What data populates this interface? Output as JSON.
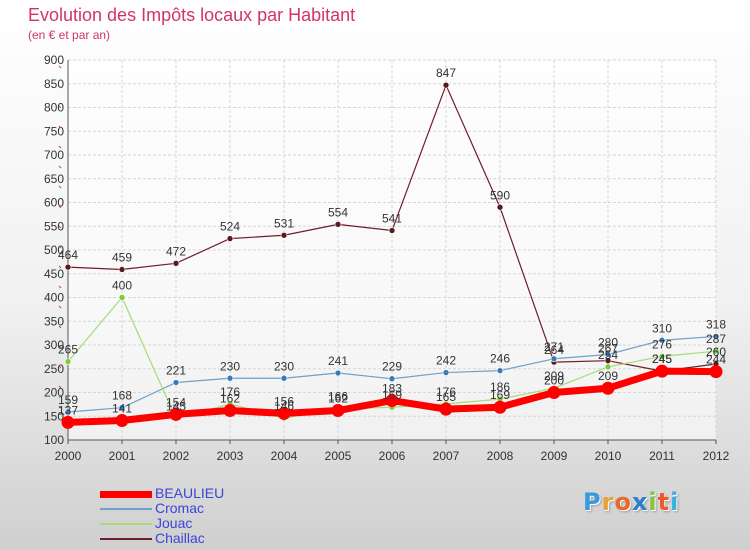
{
  "title": "Evolution des Impôts locaux par Habitant",
  "subtitle": "(en € et par an)",
  "logo": {
    "text": "Proxiti",
    "letters": [
      "P",
      "r",
      "o",
      "x",
      "i",
      "t",
      "i"
    ],
    "colors": [
      "#3a9ad9",
      "#e8a13a",
      "#e86a2a",
      "#2a7fc9",
      "#8ac23a",
      "#e85a2a",
      "#3ab0e0"
    ]
  },
  "chart_data": {
    "type": "line",
    "title": "Evolution des Impôts locaux par Habitant",
    "subtitle": "(en € et par an)",
    "x": [
      "2000",
      "2001",
      "2002",
      "2003",
      "2004",
      "2005",
      "2006",
      "2007",
      "2008",
      "2009",
      "2010",
      "2011",
      "2012"
    ],
    "yticks": [
      "100",
      "150",
      "200",
      "250",
      "300",
      "350",
      "400",
      "450",
      "500",
      "550",
      "600",
      "650",
      "700",
      "750",
      "800",
      "850",
      "900"
    ],
    "ylim": [
      100,
      900
    ],
    "grid": true,
    "legend_position": "bottom-left",
    "series": [
      {
        "name": "Chaillac",
        "color": "#6e1e28",
        "marker": "#5a1820",
        "width": 1.2,
        "values": [
          464,
          459,
          472,
          524,
          531,
          554,
          541,
          847,
          590,
          264,
          267,
          245,
          260
        ],
        "labels": [
          "464",
          "459",
          "472",
          "524",
          "531",
          "554",
          "541",
          "847",
          "590",
          "264",
          "267",
          "245",
          "260"
        ]
      },
      {
        "name": "Cromac",
        "color": "#6ea0c8",
        "marker": "#3a7ab8",
        "width": 1.2,
        "values": [
          159,
          168,
          221,
          230,
          230,
          241,
          229,
          242,
          246,
          271,
          280,
          310,
          318
        ],
        "labels": [
          "159",
          "168",
          "221",
          "230",
          "230",
          "241",
          "229",
          "242",
          "246",
          "271",
          "280",
          "310",
          "318"
        ]
      },
      {
        "name": "Jouac",
        "color": "#a4dc7a",
        "marker": "#7acc3a",
        "width": 1.2,
        "values": [
          265,
          400,
          145,
          176,
          146,
          166,
          169,
          176,
          186,
          209,
          254,
          276,
          287
        ],
        "labels": [
          "265",
          "400",
          "145",
          "176",
          "146",
          "166",
          "169",
          "176",
          "186",
          "209",
          "254",
          "276",
          "287"
        ]
      },
      {
        "name": "BEAULIEU",
        "color": "#ff0000",
        "marker": "#ff0000",
        "width": 7,
        "values": [
          137,
          141,
          154,
          162,
          156,
          162,
          183,
          165,
          169,
          200,
          209,
          245,
          244
        ],
        "labels": [
          "137",
          "141",
          "154",
          "162",
          "156",
          "162",
          "183",
          "165",
          "169",
          "200",
          "209",
          "245",
          "244"
        ]
      }
    ],
    "legend": [
      {
        "name": "BEAULIEU",
        "color": "#ff0000",
        "thick": true
      },
      {
        "name": "Cromac",
        "color": "#6ea0c8",
        "thick": false
      },
      {
        "name": "Jouac",
        "color": "#a4dc7a",
        "thick": false
      },
      {
        "name": "Chaillac",
        "color": "#6e1e28",
        "thick": false
      }
    ]
  }
}
